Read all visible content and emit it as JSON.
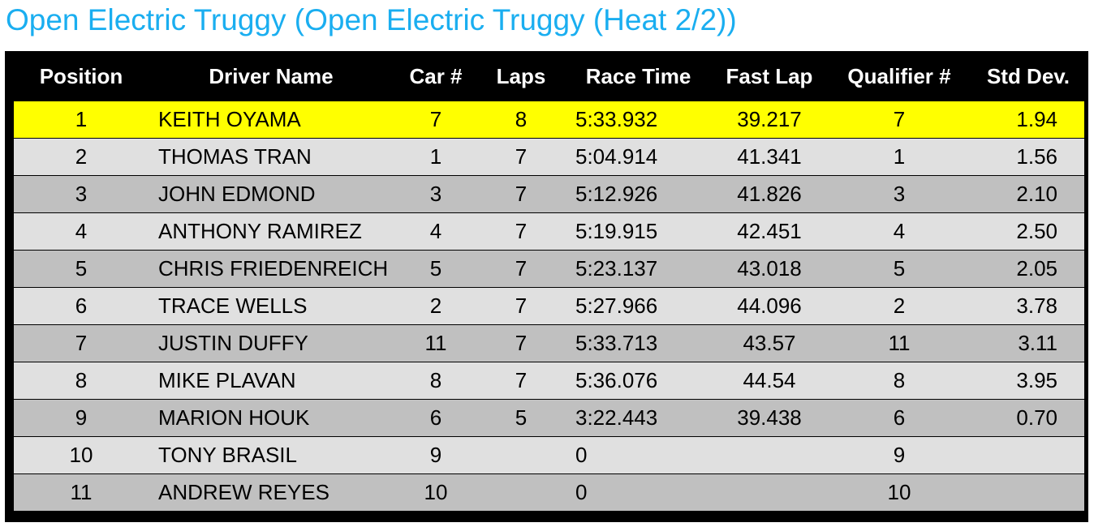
{
  "page": {
    "title": "Open Electric Truggy (Open Electric Truggy (Heat 2/2))"
  },
  "colors": {
    "title": "#1aaef0",
    "frame": "#000000",
    "header_text": "#ffffff",
    "row_light": "#e0e0e0",
    "row_dark": "#c0c0c0",
    "row_highlight": "#ffff00"
  },
  "table": {
    "headers": {
      "position": "Position",
      "driver": "Driver Name",
      "car": "Car #",
      "laps": "Laps",
      "race_time": "Race Time",
      "fast_lap": "Fast Lap",
      "qualifier": "Qualifier #",
      "std_dev": "Std Dev."
    },
    "highlighted_row": 0,
    "rows": [
      {
        "position": "1",
        "driver": "KEITH OYAMA",
        "car": "7",
        "laps": "8",
        "race_time": "5:33.932",
        "fast_lap": "39.217",
        "qualifier": "7",
        "std_dev": "1.94"
      },
      {
        "position": "2",
        "driver": "THOMAS TRAN",
        "car": "1",
        "laps": "7",
        "race_time": "5:04.914",
        "fast_lap": "41.341",
        "qualifier": "1",
        "std_dev": "1.56"
      },
      {
        "position": "3",
        "driver": "JOHN EDMOND",
        "car": "3",
        "laps": "7",
        "race_time": "5:12.926",
        "fast_lap": "41.826",
        "qualifier": "3",
        "std_dev": "2.10"
      },
      {
        "position": "4",
        "driver": "ANTHONY RAMIREZ",
        "car": "4",
        "laps": "7",
        "race_time": "5:19.915",
        "fast_lap": "42.451",
        "qualifier": "4",
        "std_dev": "2.50"
      },
      {
        "position": "5",
        "driver": "CHRIS FRIEDENREICH",
        "car": "5",
        "laps": "7",
        "race_time": "5:23.137",
        "fast_lap": "43.018",
        "qualifier": "5",
        "std_dev": "2.05"
      },
      {
        "position": "6",
        "driver": "TRACE WELLS",
        "car": "2",
        "laps": "7",
        "race_time": "5:27.966",
        "fast_lap": "44.096",
        "qualifier": "2",
        "std_dev": "3.78"
      },
      {
        "position": "7",
        "driver": "JUSTIN DUFFY",
        "car": "11",
        "laps": "7",
        "race_time": "5:33.713",
        "fast_lap": "43.57",
        "qualifier": "11",
        "std_dev": "3.11"
      },
      {
        "position": "8",
        "driver": "MIKE PLAVAN",
        "car": "8",
        "laps": "7",
        "race_time": "5:36.076",
        "fast_lap": "44.54",
        "qualifier": "8",
        "std_dev": "3.95"
      },
      {
        "position": "9",
        "driver": "MARION HOUK",
        "car": "6",
        "laps": "5",
        "race_time": "3:22.443",
        "fast_lap": "39.438",
        "qualifier": "6",
        "std_dev": "0.70"
      },
      {
        "position": "10",
        "driver": "TONY BRASIL",
        "car": "9",
        "laps": "",
        "race_time": "0",
        "fast_lap": "",
        "qualifier": "9",
        "std_dev": ""
      },
      {
        "position": "11",
        "driver": "ANDREW REYES",
        "car": "10",
        "laps": "",
        "race_time": "0",
        "fast_lap": "",
        "qualifier": "10",
        "std_dev": ""
      }
    ]
  }
}
